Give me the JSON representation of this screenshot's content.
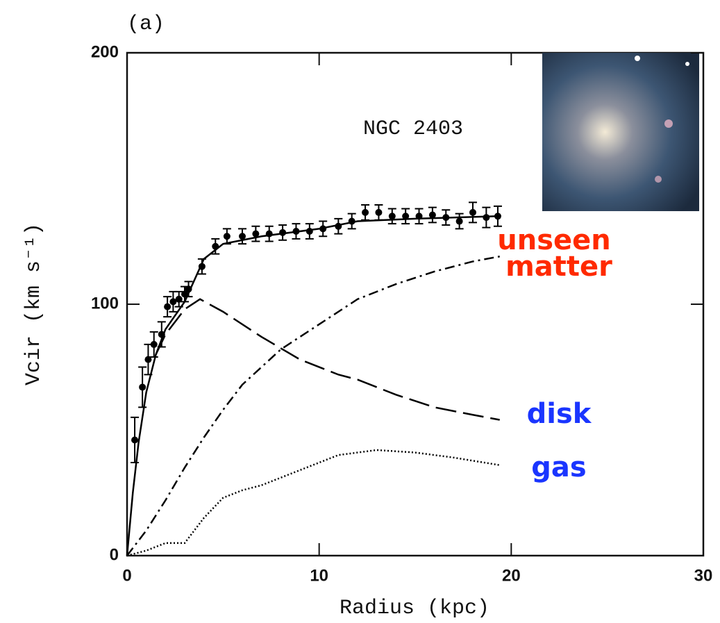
{
  "chart_data": {
    "type": "line",
    "panel_label": "(a)",
    "annotation": "NGC 2403",
    "x_label": "Radius (kpc)",
    "y_label": "Vcir (km s⁻¹)",
    "xlim": [
      0,
      30
    ],
    "ylim": [
      0,
      200
    ],
    "xticks": [
      0,
      10,
      20,
      30
    ],
    "yticks": [
      0,
      100,
      200
    ],
    "series": [
      {
        "kind": "points",
        "color": "#000000",
        "x": [
          0.4,
          0.8,
          1.1,
          1.4,
          1.8,
          2.1,
          2.4,
          2.7,
          3.0,
          3.2,
          3.9,
          4.6,
          5.2,
          6.0,
          6.7,
          7.4,
          8.1,
          8.8,
          9.5,
          10.2,
          11.0,
          11.7,
          12.4,
          13.1,
          13.8,
          14.5,
          15.2,
          15.9,
          16.6,
          17.3,
          18.0,
          18.7,
          19.3
        ],
        "values": [
          46,
          67,
          78,
          84,
          88,
          99,
          101,
          102,
          104,
          106,
          115,
          123,
          127,
          127,
          128,
          128,
          128.5,
          129,
          129,
          130,
          131,
          133,
          136.5,
          136.5,
          135,
          135,
          135,
          135.5,
          134.5,
          133,
          136.5,
          134.5,
          135
        ],
        "errors": [
          9,
          8,
          6,
          5,
          5,
          4,
          4,
          3,
          3,
          3,
          3,
          3,
          3,
          3,
          3,
          3,
          3,
          3,
          3,
          3,
          3,
          3,
          3,
          3,
          3,
          3,
          3,
          3,
          3,
          3,
          4,
          4,
          4
        ]
      },
      {
        "kind": "line",
        "color": "#000000",
        "linestyle": "solid",
        "x": [
          0,
          0.3,
          0.6,
          1.0,
          1.5,
          2.0,
          3.0,
          4.0,
          5.0,
          7.0,
          10.0,
          12.0,
          15.0,
          19.3
        ],
        "values": [
          0,
          25,
          45,
          65,
          80,
          90,
          101,
          118,
          124,
          127,
          130,
          133,
          134,
          135
        ]
      },
      {
        "kind": "line",
        "name": "unseen matter",
        "color": "#000000",
        "label_color": "#ff2a00",
        "linestyle": "dashdot",
        "x": [
          0,
          1,
          2,
          3,
          4,
          5,
          6,
          8,
          10,
          12,
          14,
          16,
          18,
          19.4
        ],
        "values": [
          0,
          10,
          22,
          35,
          47,
          58,
          68,
          82,
          92,
          102,
          108,
          113,
          117,
          119
        ]
      },
      {
        "kind": "line",
        "name": "disk",
        "color": "#000000",
        "label_color": "#1a35ff",
        "linestyle": "dashed",
        "x": [
          1.5,
          2,
          3,
          3.8,
          5,
          7,
          9,
          11,
          12,
          14,
          16,
          18,
          19.4
        ],
        "values": [
          80,
          88,
          98,
          102,
          97,
          87,
          78,
          72,
          70,
          64,
          59,
          56,
          54
        ]
      },
      {
        "kind": "line",
        "name": "gas",
        "color": "#000000",
        "label_color": "#1a35ff",
        "linestyle": "dotted",
        "x": [
          0,
          1,
          2,
          3,
          4,
          5,
          6,
          7,
          9,
          11,
          13,
          15,
          17,
          19.4
        ],
        "values": [
          0,
          2,
          5,
          5,
          15,
          23,
          26,
          28,
          34,
          40,
          42,
          41,
          39,
          36
        ]
      }
    ]
  }
}
